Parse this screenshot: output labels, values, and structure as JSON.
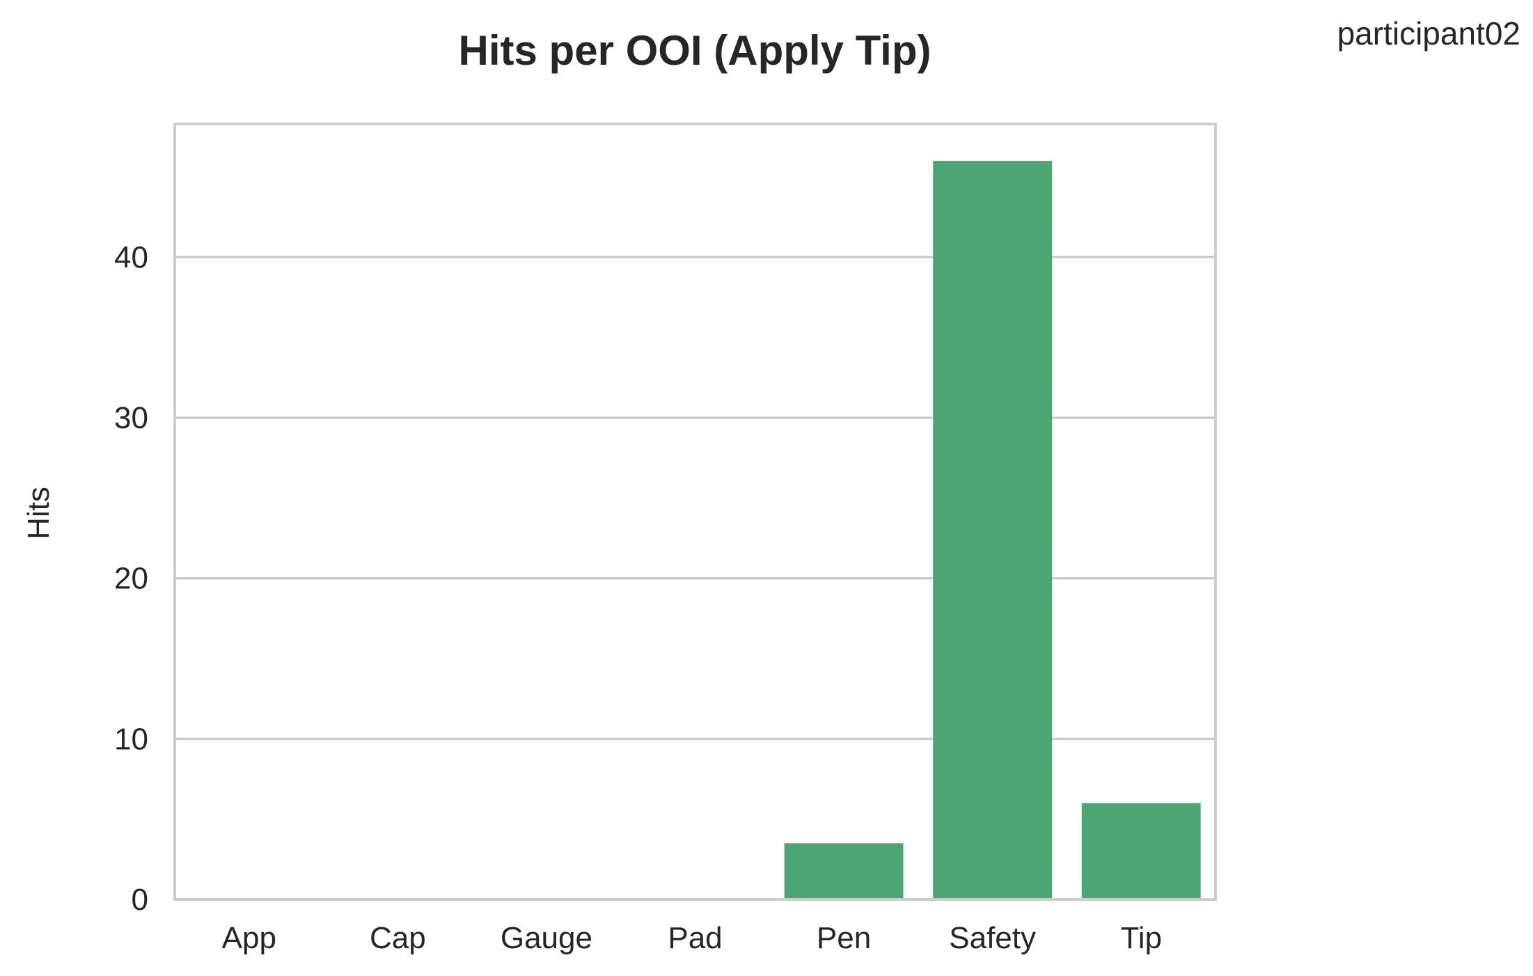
{
  "corner_label": "participant02",
  "bar_color": "#4ca674",
  "chart_data": {
    "type": "bar",
    "title": "Hits per OOI (Apply Tip)",
    "xlabel": "",
    "ylabel": "Hits",
    "categories": [
      "App",
      "Cap",
      "Gauge",
      "Pad",
      "Pen",
      "Safety",
      "Tip"
    ],
    "values": [
      0,
      0,
      0,
      0,
      3.5,
      46,
      6
    ],
    "ylim": [
      0,
      48.3
    ],
    "yticks": [
      0,
      10,
      20,
      30,
      40
    ],
    "grid": true,
    "legend": "none"
  }
}
